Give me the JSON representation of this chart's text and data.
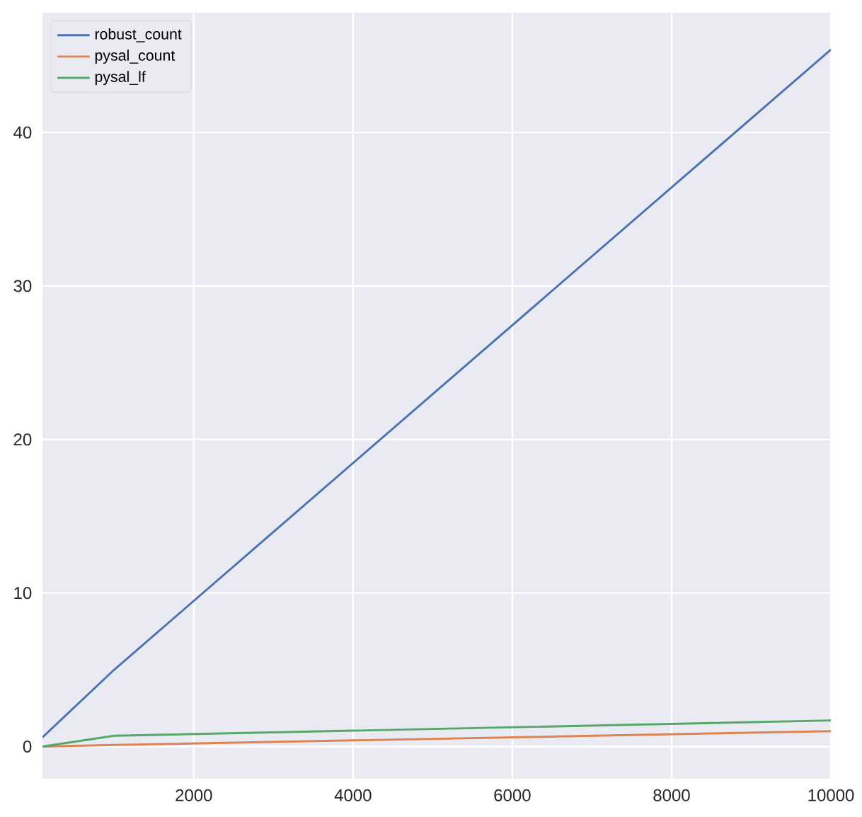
{
  "chart_data": {
    "type": "line",
    "x": [
      100,
      1000,
      10000
    ],
    "series": [
      {
        "name": "robust_count",
        "color": "#4c72b0",
        "values": [
          0.6,
          5.0,
          45.4
        ]
      },
      {
        "name": "pysal_count",
        "color": "#dd8452",
        "values": [
          0.0,
          0.1,
          1.0
        ]
      },
      {
        "name": "pysal_lf",
        "color": "#55a868",
        "values": [
          0.0,
          0.7,
          1.7
        ]
      }
    ],
    "xlim": [
      100,
      10000
    ],
    "ylim": [
      -2.1,
      47.8
    ],
    "xticks": [
      2000,
      4000,
      6000,
      8000,
      10000
    ],
    "yticks": [
      0,
      10,
      20,
      30,
      40
    ],
    "grid": true,
    "legend": "top left"
  }
}
